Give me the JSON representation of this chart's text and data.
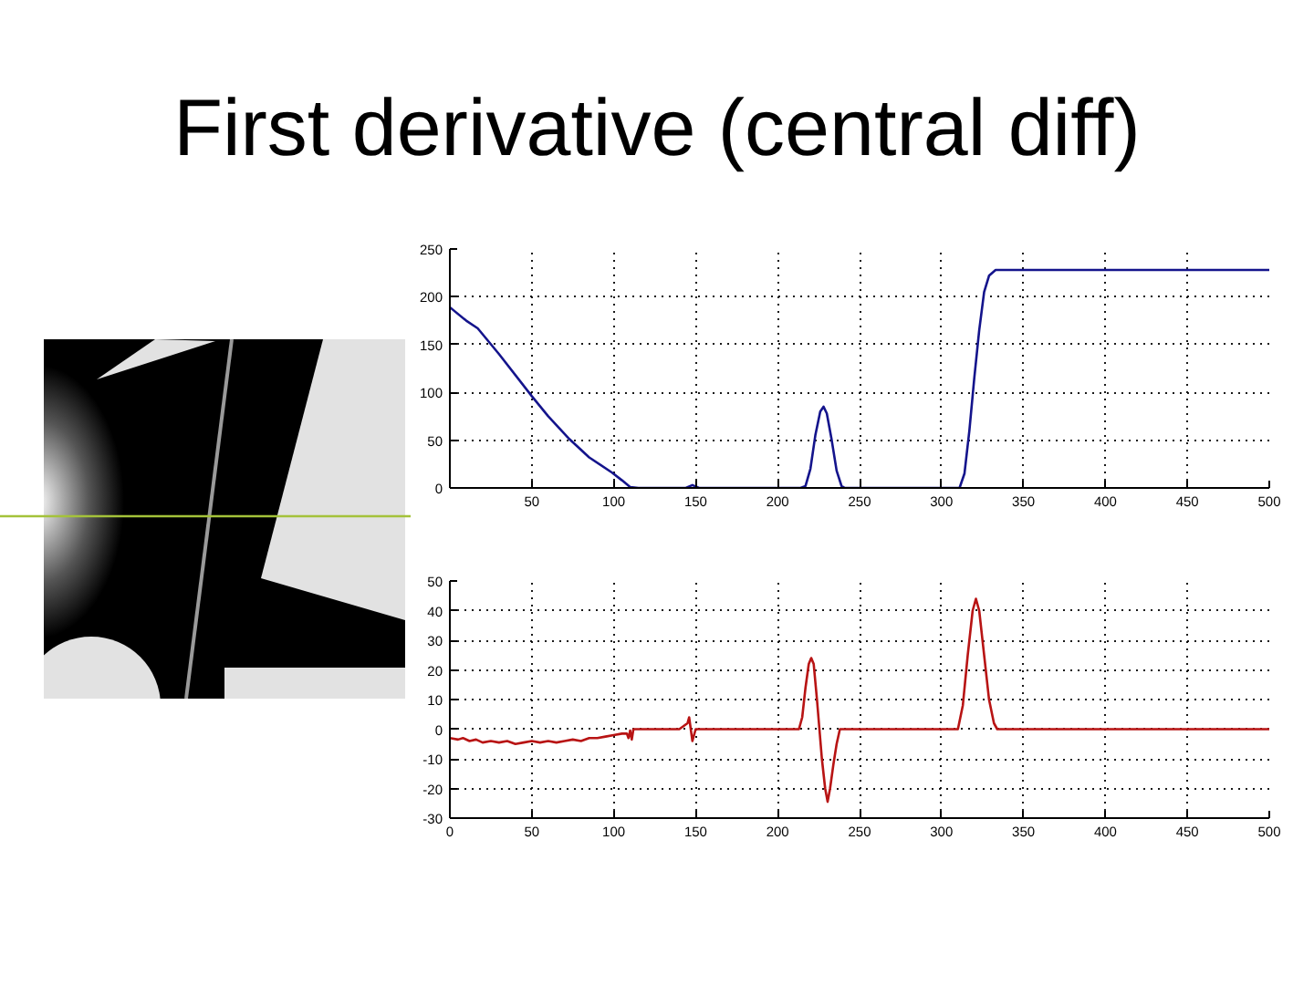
{
  "chart_data": [
    {
      "type": "line",
      "title": "First derivative (central diff)",
      "xlim": [
        0,
        500
      ],
      "ylim": [
        0,
        250
      ],
      "xticks": [
        {
          "value": 0,
          "label": null
        },
        50,
        100,
        150,
        200,
        250,
        300,
        350,
        400,
        450,
        500
      ],
      "yticks": [
        0,
        50,
        100,
        150,
        200,
        250
      ],
      "grid": true,
      "series": [
        {
          "color": "#14148c",
          "x": [
            0,
            10,
            17,
            30,
            50,
            60,
            73,
            85,
            99,
            105,
            110,
            115,
            144,
            148,
            152,
            214,
            217,
            220,
            223,
            226,
            228,
            230,
            233,
            236,
            239,
            241,
            311,
            314,
            317,
            320,
            323,
            326,
            329,
            333,
            338,
            500
          ],
          "values": [
            189,
            175,
            167,
            140,
            96,
            75,
            51,
            32,
            16,
            8,
            1,
            0,
            0,
            3,
            0,
            0,
            2,
            20,
            55,
            80,
            85,
            78,
            50,
            18,
            2,
            0,
            0,
            15,
            60,
            115,
            165,
            205,
            222,
            228,
            228,
            228
          ]
        }
      ]
    },
    {
      "type": "line",
      "xlim": [
        0,
        500
      ],
      "ylim": [
        -30,
        50
      ],
      "xticks": [
        0,
        50,
        100,
        150,
        200,
        250,
        300,
        350,
        400,
        450,
        500
      ],
      "yticks": [
        -30,
        -20,
        -10,
        0,
        10,
        20,
        30,
        40,
        50
      ],
      "grid": true,
      "series": [
        {
          "color": "#b81414",
          "x": [
            0,
            5,
            8,
            12,
            16,
            20,
            25,
            30,
            35,
            40,
            45,
            50,
            55,
            60,
            65,
            70,
            75,
            80,
            85,
            90,
            95,
            100,
            105,
            108,
            109,
            110,
            111,
            112,
            140,
            145,
            146,
            147,
            148,
            149,
            150,
            213,
            215,
            217,
            219,
            220.5,
            222,
            224,
            225.5,
            227,
            229,
            230.5,
            232,
            234,
            236,
            238,
            310,
            313,
            316,
            319,
            321,
            323,
            326,
            329,
            332,
            334,
            500
          ],
          "values": [
            -3,
            -3.5,
            -3,
            -4,
            -3.5,
            -4.5,
            -4,
            -4.5,
            -4,
            -5,
            -4.5,
            -4,
            -4.5,
            -4,
            -4.5,
            -4,
            -3.5,
            -4,
            -3,
            -3,
            -2.5,
            -2,
            -1.5,
            -1.5,
            -3,
            -0.5,
            -3.5,
            0,
            0,
            2,
            4,
            0,
            -4,
            -2,
            0,
            0,
            4,
            14,
            22,
            24,
            22,
            10,
            0,
            -10,
            -20,
            -24.5,
            -20,
            -12,
            -5,
            0,
            0,
            8,
            25,
            40,
            44,
            40,
            25,
            10,
            2,
            0,
            0
          ]
        }
      ]
    }
  ]
}
